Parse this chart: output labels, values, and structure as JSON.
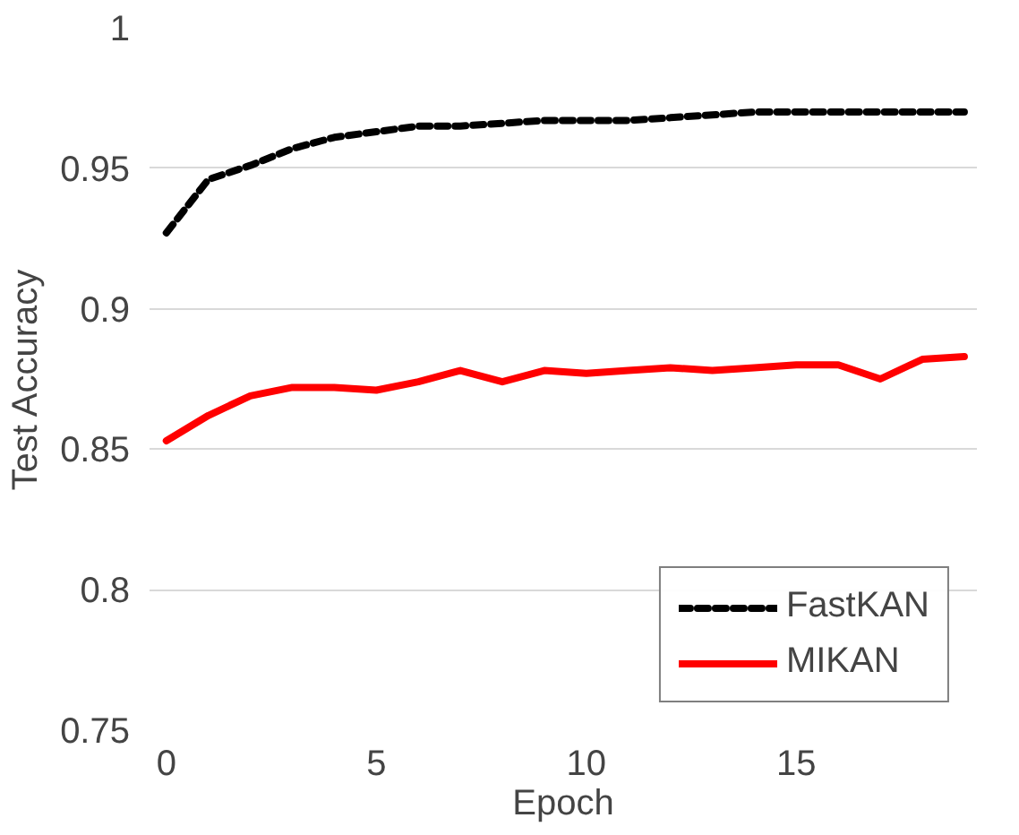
{
  "chart_data": {
    "type": "line",
    "xlabel": "Epoch",
    "ylabel": "Test Accuracy",
    "x": [
      0,
      1,
      2,
      3,
      4,
      5,
      6,
      7,
      8,
      9,
      10,
      11,
      12,
      13,
      14,
      15,
      16,
      17,
      18,
      19
    ],
    "xlim": [
      -0.4,
      19.3
    ],
    "xticks": [
      0,
      5,
      10,
      15
    ],
    "ylim": [
      0.75,
      1
    ],
    "yticks": [
      0.75,
      0.8,
      0.85,
      0.9,
      0.95,
      1
    ],
    "grid": "y",
    "legend": "bottom right",
    "marker": "none",
    "series": [
      {
        "name": "FastKAN",
        "color": "#000000",
        "line_style": "dashed",
        "values": [
          0.927,
          0.946,
          0.951,
          0.957,
          0.961,
          0.963,
          0.965,
          0.965,
          0.966,
          0.967,
          0.967,
          0.967,
          0.968,
          0.969,
          0.97,
          0.97,
          0.97,
          0.97,
          0.97,
          0.97
        ]
      },
      {
        "name": "MIKAN",
        "color": "#ff0000",
        "line_style": "solid",
        "values": [
          0.853,
          0.862,
          0.869,
          0.872,
          0.872,
          0.871,
          0.874,
          0.878,
          0.874,
          0.878,
          0.877,
          0.878,
          0.879,
          0.878,
          0.879,
          0.88,
          0.88,
          0.875,
          0.882,
          0.883
        ]
      }
    ]
  }
}
